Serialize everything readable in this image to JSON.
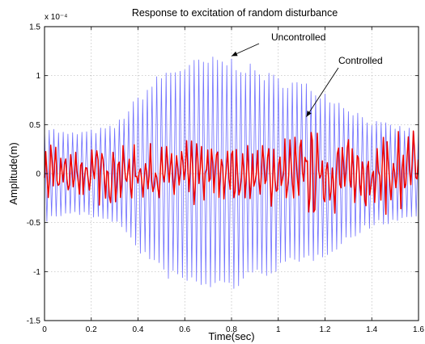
{
  "chart_data": {
    "type": "line",
    "title": "Response to excitation of random disturbance",
    "xlabel": "Time(sec)",
    "ylabel": "Amplitude(m)",
    "y_scale_label": "x 10⁻⁴",
    "xlim": [
      0,
      1.6
    ],
    "ylim": [
      -1.5,
      1.5
    ],
    "x_ticks": [
      "0",
      "0.2",
      "0.4",
      "0.6",
      "0.8",
      "1",
      "1.2",
      "1.4",
      "1.6"
    ],
    "y_ticks": [
      "-1.5",
      "-1",
      "-0.5",
      "0",
      "0.5",
      "1",
      "1.5"
    ],
    "grid": true,
    "series": [
      {
        "name": "Uncontrolled",
        "color": "#6f6fff",
        "sample_dt": 0.01,
        "envelope_t": [
          0,
          0.1,
          0.2,
          0.3,
          0.4,
          0.5,
          0.6,
          0.7,
          0.8,
          0.9,
          1.0,
          1.1,
          1.2,
          1.3,
          1.4,
          1.5,
          1.6
        ],
        "envelope_amp": [
          0.5,
          0.42,
          0.45,
          0.5,
          0.8,
          1.05,
          1.15,
          1.2,
          1.2,
          1.1,
          1.0,
          0.95,
          0.85,
          0.7,
          0.55,
          0.5,
          0.45
        ],
        "oscillation_hz": 50
      },
      {
        "name": "Controlled",
        "color": "#ee0000",
        "sample_dt": 0.00533,
        "envelope_t": [
          0,
          0.1,
          0.2,
          0.3,
          0.4,
          0.5,
          0.6,
          0.7,
          0.8,
          0.9,
          1.0,
          1.1,
          1.2,
          1.3,
          1.4,
          1.5,
          1.6
        ],
        "envelope_amp": [
          0.3,
          0.28,
          0.32,
          0.35,
          0.3,
          0.32,
          0.35,
          0.38,
          0.33,
          0.3,
          0.4,
          0.45,
          0.5,
          0.42,
          0.38,
          0.5,
          0.55
        ],
        "oscillation_hz": 45
      }
    ],
    "annotations": [
      {
        "text": "Uncontrolled",
        "arrow_to": [
          0.8,
          1.2
        ]
      },
      {
        "text": "Controlled",
        "arrow_to": [
          1.12,
          0.58
        ]
      }
    ]
  }
}
